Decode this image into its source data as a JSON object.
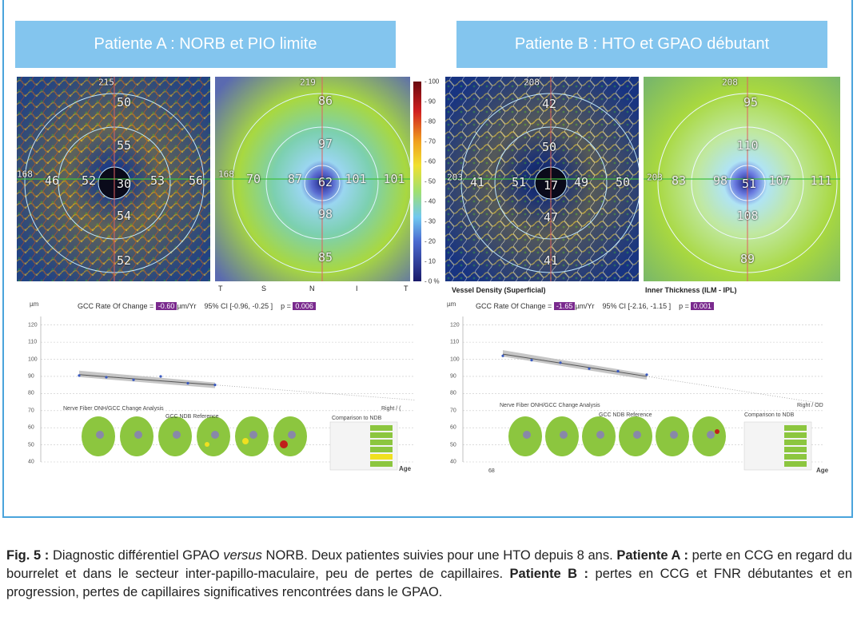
{
  "panelA": {
    "title": "Patiente A : NORB et PIO limite",
    "angio": {
      "top": "215",
      "left": "168",
      "values": [
        "50",
        "55",
        "46",
        "52",
        "30",
        "53",
        "56",
        "54",
        "52"
      ]
    },
    "thickness": {
      "top": "219",
      "left": "168",
      "values": [
        "86",
        "97",
        "70",
        "87",
        "62",
        "101",
        "101",
        "98",
        "85"
      ]
    },
    "gcc": {
      "label": "GCC Rate Of Change =",
      "rate": "-0.60",
      "unit": "µm/Yr",
      "ci": "95% CI [-0.96, -0.25 ]",
      "p_label": "p =",
      "p": "0.006"
    },
    "change_title": "Nerve Fiber ONH/GCC Change Analysis",
    "side": "Right / (",
    "comparison": "Comparison to NDB",
    "reference": "GCC NDB Reference"
  },
  "panelB": {
    "title": "Patiente B : HTO et GPAO débutant",
    "angio": {
      "top": "208",
      "left": "203",
      "values": [
        "42",
        "50",
        "41",
        "51",
        "17",
        "49",
        "50",
        "47",
        "41"
      ]
    },
    "thickness": {
      "top": "208",
      "left": "203",
      "values": [
        "95",
        "110",
        "83",
        "98",
        "51",
        "107",
        "111",
        "108",
        "89"
      ]
    },
    "gcc": {
      "label": "GCC Rate Of Change =",
      "rate": "-1.65",
      "unit": "µm/Yr",
      "ci": "95% CI [-2.16, -1.15 ]",
      "p_label": "p =",
      "p": "0.001"
    },
    "change_title": "Nerve Fiber ONH/GCC Change Analysis",
    "side": "Right / OD",
    "comparison": "Comparison to NDB",
    "reference": "GCC NDB Reference",
    "x_first": "68"
  },
  "colorbar_ticks": [
    "100",
    "90",
    "80",
    "70",
    "60",
    "50",
    "40",
    "30",
    "20",
    "10",
    "0 %"
  ],
  "below_labels": {
    "vessel": "Vessel Density (Superficial)",
    "inner": "Inner Thickness (ILM - IPL)",
    "tsnit": [
      "T",
      "S",
      "N",
      "I",
      "T"
    ]
  },
  "y_axis": {
    "unit": "µm",
    "ticks": [
      "120",
      "110",
      "100",
      "90",
      "80",
      "70",
      "60",
      "50",
      "40"
    ]
  },
  "age_label": "Age",
  "chart_data": [
    {
      "type": "scatter",
      "title": "",
      "xlabel": "Age",
      "ylabel": "µm",
      "ylim": [
        40,
        125
      ],
      "points": [
        [
          0,
          90.5
        ],
        [
          1,
          89.5
        ],
        [
          2,
          88
        ],
        [
          3,
          90
        ],
        [
          4,
          86
        ],
        [
          5,
          85
        ]
      ],
      "trend": [
        [
          0,
          91
        ],
        [
          5,
          85
        ]
      ]
    },
    {
      "type": "scatter",
      "title": "",
      "xlabel": "Age",
      "ylabel": "µm",
      "ylim": [
        40,
        125
      ],
      "points": [
        [
          0,
          102
        ],
        [
          1,
          99.5
        ],
        [
          2,
          98
        ],
        [
          3,
          94.5
        ],
        [
          4,
          93
        ],
        [
          5,
          91
        ]
      ],
      "trend": [
        [
          0,
          103
        ],
        [
          5,
          90
        ]
      ]
    }
  ],
  "caption": {
    "fig": "Fig. 5 :",
    "intro": " Diagnostic différentiel GPAO ",
    "versus": "versus",
    "rest1": " NORB. Deux patientes suivies pour une HTO depuis 8 ans. ",
    "a_label": "Patiente A :",
    "a_text": " perte en CCG en regard du bourrelet et dans le secteur inter-papillo-maculaire, peu de pertes de capillaires. ",
    "b_label": "Patiente B :",
    "b_text": " pertes en CCG et FNR débutantes et en progression, pertes de capillaires significatives rencontrées dans le GPAO."
  }
}
